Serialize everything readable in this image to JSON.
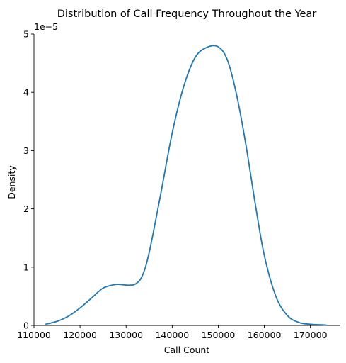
{
  "chart_data": {
    "type": "line",
    "title": "Distribution of Call Frequency Throughout the Year",
    "xlabel": "Call Count",
    "ylabel": "Density",
    "y_multiplier": "1e−5",
    "xlim": [
      110000,
      176500
    ],
    "ylim": [
      0,
      5
    ],
    "x_ticks": [
      110000,
      120000,
      130000,
      140000,
      150000,
      160000,
      170000
    ],
    "x_tick_labels": [
      "110000",
      "120000",
      "130000",
      "140000",
      "150000",
      "160000",
      "170000"
    ],
    "y_ticks": [
      0,
      1,
      2,
      3,
      4,
      5
    ],
    "y_tick_labels": [
      "0",
      "1",
      "2",
      "3",
      "4",
      "5"
    ],
    "grid": false,
    "line_color": "#1f77b4",
    "series": [
      {
        "name": "",
        "x": [
          112500,
          115000,
          117500,
          120000,
          122500,
          125000,
          127500,
          129000,
          130500,
          132000,
          133500,
          135000,
          137500,
          140000,
          142500,
          145000,
          147500,
          150000,
          152000,
          154000,
          156000,
          158000,
          160000,
          162500,
          165000,
          167500,
          170000,
          172500,
          173500
        ],
        "y": [
          0.02,
          0.07,
          0.16,
          0.3,
          0.47,
          0.64,
          0.7,
          0.7,
          0.69,
          0.71,
          0.85,
          1.25,
          2.25,
          3.3,
          4.1,
          4.6,
          4.77,
          4.78,
          4.55,
          3.95,
          3.1,
          2.1,
          1.2,
          0.5,
          0.17,
          0.05,
          0.02,
          0.01,
          0.005
        ]
      }
    ]
  }
}
